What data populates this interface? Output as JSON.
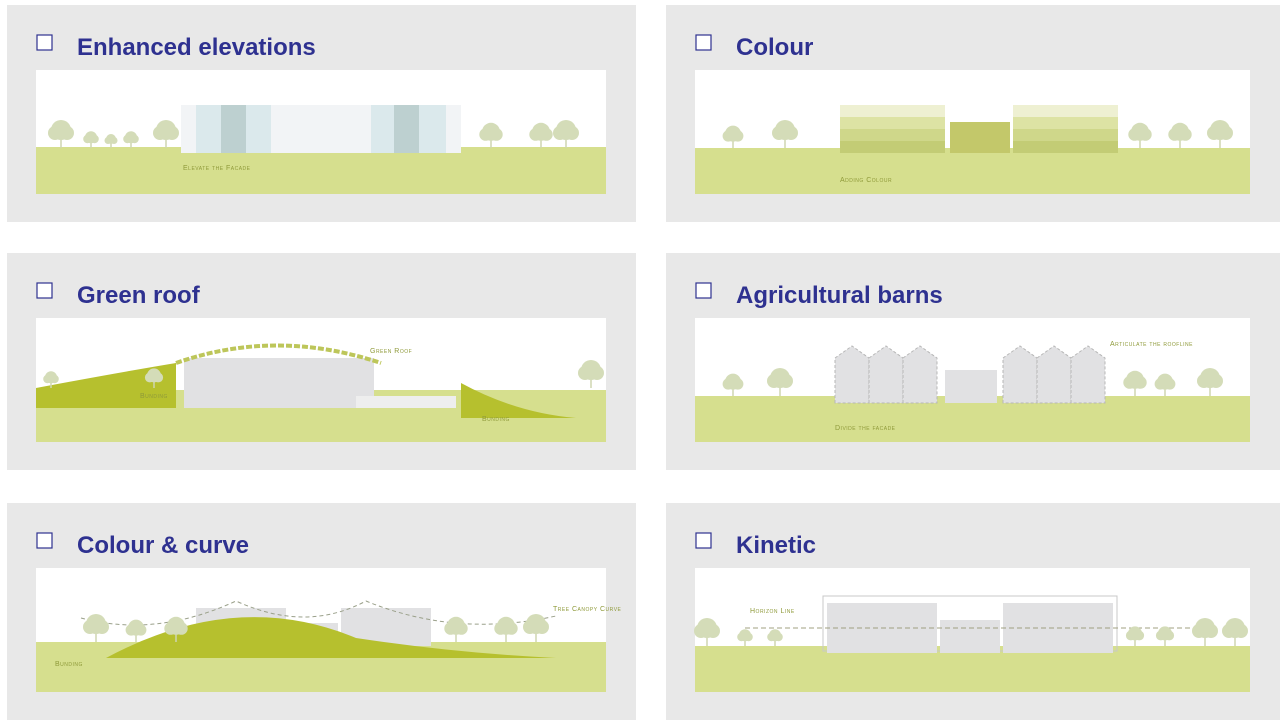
{
  "panels": [
    {
      "title": "Enhanced elevations",
      "labels": [
        "Elevate the Facade"
      ]
    },
    {
      "title": "Colour",
      "labels": [
        "Adding Colour"
      ]
    },
    {
      "title": "Green roof",
      "labels": [
        "Green Roof",
        "Bunding",
        "Bunding"
      ]
    },
    {
      "title": "Agricultural barns",
      "labels": [
        "Articulate the roofline",
        "Divide the facade"
      ]
    },
    {
      "title": "Colour & curve",
      "labels": [
        "Tree Canopy Curve",
        "Bunding"
      ]
    },
    {
      "title": "Kinetic",
      "labels": [
        "Horizon Line"
      ]
    }
  ]
}
